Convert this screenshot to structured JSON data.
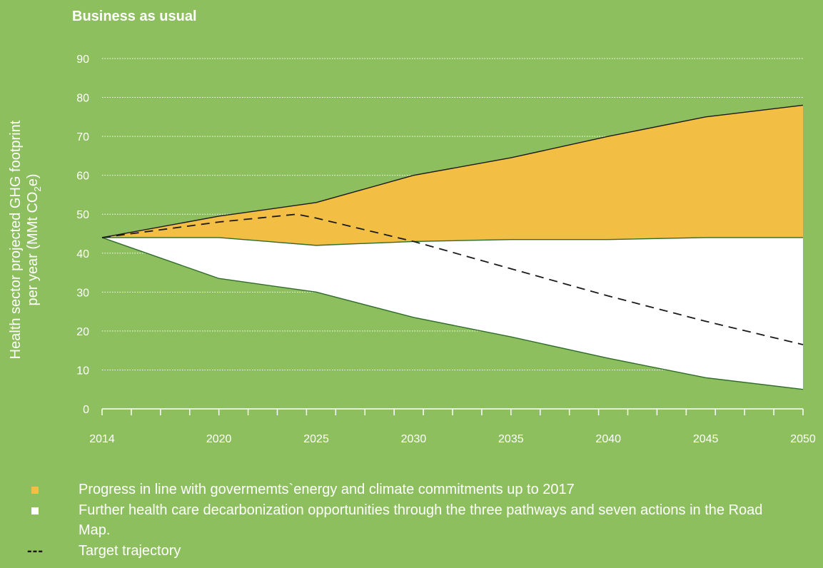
{
  "chart_data": {
    "type": "area",
    "title": "Business as usual",
    "ylabel_lines": [
      "Health sector projected GHG footprint",
      "per year (MMt CO"
    ],
    "ylabel_sub": "2",
    "ylabel_tail": "e)",
    "x": [
      2014,
      2020,
      2025,
      2030,
      2035,
      2040,
      2045,
      2050
    ],
    "x_tick_labels": [
      "2014",
      "2020",
      "2025",
      "2030",
      "2035",
      "2040",
      "2045",
      "2050"
    ],
    "ylim": [
      0,
      90
    ],
    "y_ticks": [
      0,
      10,
      20,
      30,
      40,
      50,
      60,
      70,
      80,
      90
    ],
    "grid": true,
    "series": [
      {
        "key": "bau",
        "x": [
          2014,
          2020,
          2025,
          2030,
          2035,
          2040,
          2045,
          2050
        ],
        "values": [
          44,
          49.5,
          53,
          60,
          64.5,
          70,
          75,
          78
        ]
      },
      {
        "key": "commitments",
        "x": [
          2014,
          2020,
          2025,
          2030,
          2035,
          2040,
          2045,
          2050
        ],
        "values": [
          44,
          44,
          42,
          43,
          43.5,
          43.5,
          44,
          44
        ]
      },
      {
        "key": "roadmap",
        "x": [
          2014,
          2020,
          2025,
          2030,
          2035,
          2040,
          2045,
          2050
        ],
        "values": [
          44,
          33.5,
          30,
          23.5,
          18.5,
          13,
          8,
          5
        ]
      },
      {
        "key": "target",
        "x": [
          2014,
          2020,
          2024,
          2025,
          2030,
          2035,
          2040,
          2045,
          2050
        ],
        "values": [
          44,
          48,
          50,
          49,
          43,
          36,
          29,
          22.5,
          16.5
        ]
      }
    ],
    "colors": {
      "background": "#8ebf5f",
      "commitments_fill": "#f2be44",
      "roadmap_fill": "#ffffff",
      "line": "#1f3d1a",
      "target_line": "#1a1a1a",
      "grid": "#ffffff"
    }
  },
  "legend": [
    {
      "marker": "square",
      "color": "#f2be44",
      "text": "Progress in line with govermemts`energy and climate commitments up to 2017"
    },
    {
      "marker": "square",
      "color": "#ffffff",
      "text": "Further health care decarbonization opportunities through the three pathways and seven actions in the Road Map."
    },
    {
      "marker": "dash",
      "symbol": "---",
      "text": "Target trajectory"
    }
  ]
}
